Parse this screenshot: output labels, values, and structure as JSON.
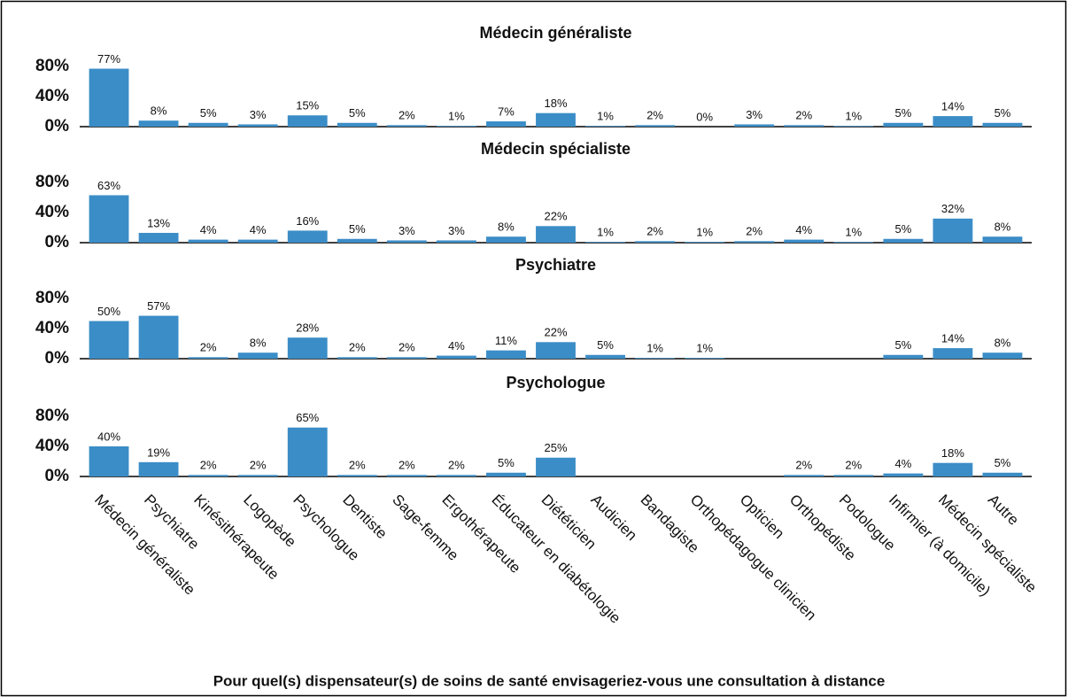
{
  "chart_data": {
    "type": "bar",
    "xlabel": "Pour quel(s) dispensateur(s) de soins de santé envisageriez-vous une consultation à distance",
    "categories": [
      "Médecin généraliste",
      "Psychiatre",
      "Kinésithérapeute",
      "Logopède",
      "Psychologue",
      "Dentiste",
      "Sage-femme",
      "Ergothérapeute",
      "Éducateur en diabétologie",
      "Diététicien",
      "Audicien",
      "Bandagiste",
      "Orthopédagogue clinicien",
      "Opticien",
      "Orthopédiste",
      "Podologue",
      "Infirmier (à domicile)",
      "Médecin spécialiste",
      "Autre"
    ],
    "color": "#3b8dc7",
    "ylim": [
      0,
      80
    ],
    "yticks": [
      {
        "value": 0,
        "label": "0%"
      },
      {
        "value": 40,
        "label": "40%"
      },
      {
        "value": 80,
        "label": "80%"
      }
    ],
    "series": [
      {
        "name": "Médecin généraliste",
        "values": [
          77,
          8,
          5,
          3,
          15,
          5,
          2,
          1,
          7,
          18,
          1,
          2,
          0,
          3,
          2,
          1,
          5,
          14,
          5
        ],
        "value_labels": [
          "77%",
          "8%",
          "5%",
          "3%",
          "15%",
          "5%",
          "2%",
          "1%",
          "7%",
          "18%",
          "1%",
          "2%",
          "0%",
          "3%",
          "2%",
          "1%",
          "5%",
          "14%",
          "5%"
        ]
      },
      {
        "name": "Médecin spécialiste",
        "values": [
          63,
          13,
          4,
          4,
          16,
          5,
          3,
          3,
          8,
          22,
          1,
          2,
          1,
          2,
          4,
          1,
          5,
          32,
          8
        ],
        "value_labels": [
          "63%",
          "13%",
          "4%",
          "4%",
          "16%",
          "5%",
          "3%",
          "3%",
          "8%",
          "22%",
          "1%",
          "2%",
          "1%",
          "2%",
          "4%",
          "1%",
          "5%",
          "32%",
          "8%"
        ]
      },
      {
        "name": "Psychiatre",
        "values": [
          50,
          57,
          2,
          8,
          28,
          2,
          2,
          4,
          11,
          22,
          5,
          1,
          1,
          null,
          null,
          null,
          5,
          14,
          8
        ],
        "value_labels": [
          "50%",
          "57%",
          "2%",
          "8%",
          "28%",
          "2%",
          "2%",
          "4%",
          "11%",
          "22%",
          "5%",
          "1%",
          "1%",
          null,
          null,
          null,
          "5%",
          "14%",
          "8%"
        ]
      },
      {
        "name": "Psychologue",
        "values": [
          40,
          19,
          2,
          2,
          65,
          2,
          2,
          2,
          5,
          25,
          null,
          null,
          null,
          null,
          2,
          2,
          4,
          18,
          5
        ],
        "value_labels": [
          "40%",
          "19%",
          "2%",
          "2%",
          "65%",
          "2%",
          "2%",
          "2%",
          "5%",
          "25%",
          null,
          null,
          null,
          null,
          "2%",
          "2%",
          "4%",
          "18%",
          "5%"
        ]
      }
    ]
  }
}
